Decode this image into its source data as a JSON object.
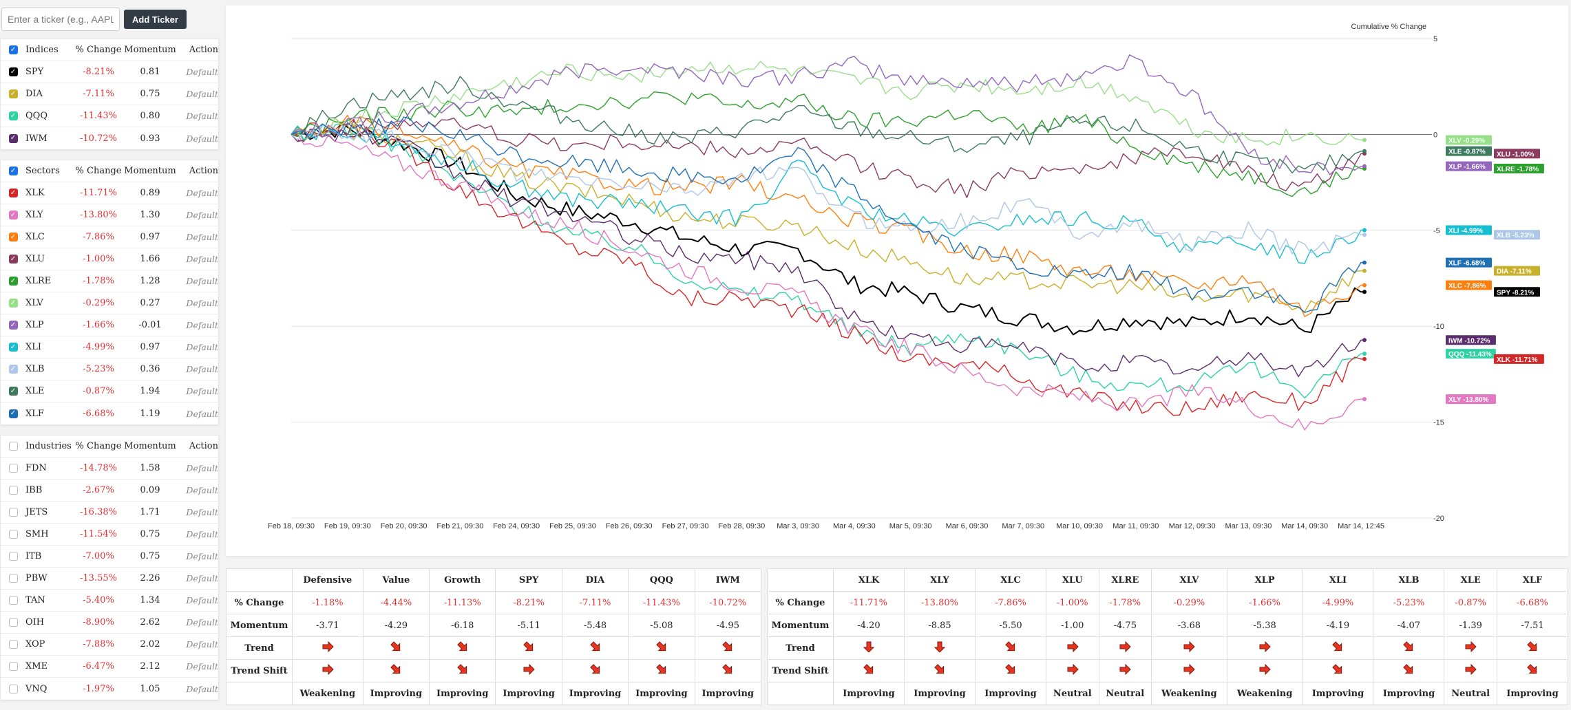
{
  "add_ticker": {
    "placeholder": "Enter a ticker (e.g., AAPL)",
    "button_label": "Add Ticker"
  },
  "headers": {
    "pct": "% Change",
    "momentum": "Momentum",
    "action": "Action"
  },
  "groups": [
    {
      "name": "Indices",
      "checked": true,
      "rows": [
        {
          "ticker": "SPY",
          "pct": "-8.21%",
          "momentum": "0.81",
          "action": "Default",
          "color": "#000000",
          "checked": true
        },
        {
          "ticker": "DIA",
          "pct": "-7.11%",
          "momentum": "0.75",
          "action": "Default",
          "color": "#c9b02a",
          "checked": true
        },
        {
          "ticker": "QQQ",
          "pct": "-11.43%",
          "momentum": "0.80",
          "action": "Default",
          "color": "#2ed3a3",
          "checked": true
        },
        {
          "ticker": "IWM",
          "pct": "-10.72%",
          "momentum": "0.93",
          "action": "Default",
          "color": "#5c2d6e",
          "checked": true
        }
      ]
    },
    {
      "name": "Sectors",
      "checked": true,
      "rows": [
        {
          "ticker": "XLK",
          "pct": "-11.71%",
          "momentum": "0.89",
          "action": "Default",
          "color": "#d62728",
          "checked": true
        },
        {
          "ticker": "XLY",
          "pct": "-13.80%",
          "momentum": "1.30",
          "action": "Default",
          "color": "#e377c2",
          "checked": true
        },
        {
          "ticker": "XLC",
          "pct": "-7.86%",
          "momentum": "0.97",
          "action": "Default",
          "color": "#ff7f0e",
          "checked": true
        },
        {
          "ticker": "XLU",
          "pct": "-1.00%",
          "momentum": "1.66",
          "action": "Default",
          "color": "#8c3b5e",
          "checked": true
        },
        {
          "ticker": "XLRE",
          "pct": "-1.78%",
          "momentum": "1.28",
          "action": "Default",
          "color": "#2ca02c",
          "checked": true
        },
        {
          "ticker": "XLV",
          "pct": "-0.29%",
          "momentum": "0.27",
          "action": "Default",
          "color": "#98df8a",
          "checked": true
        },
        {
          "ticker": "XLP",
          "pct": "-1.66%",
          "momentum": "-0.01",
          "action": "Default",
          "color": "#9467bd",
          "checked": true
        },
        {
          "ticker": "XLI",
          "pct": "-4.99%",
          "momentum": "0.97",
          "action": "Default",
          "color": "#17becf",
          "checked": true
        },
        {
          "ticker": "XLB",
          "pct": "-5.23%",
          "momentum": "0.36",
          "action": "Default",
          "color": "#aec7e8",
          "checked": true
        },
        {
          "ticker": "XLE",
          "pct": "-0.87%",
          "momentum": "1.94",
          "action": "Default",
          "color": "#3d7a5e",
          "checked": true
        },
        {
          "ticker": "XLF",
          "pct": "-6.68%",
          "momentum": "1.19",
          "action": "Default",
          "color": "#1f6fb4",
          "checked": true
        }
      ]
    },
    {
      "name": "Industries",
      "checked": false,
      "rows": [
        {
          "ticker": "FDN",
          "pct": "-14.78%",
          "momentum": "1.58",
          "action": "Default",
          "color": "",
          "checked": false
        },
        {
          "ticker": "IBB",
          "pct": "-2.67%",
          "momentum": "0.09",
          "action": "Default",
          "color": "",
          "checked": false
        },
        {
          "ticker": "JETS",
          "pct": "-16.38%",
          "momentum": "1.71",
          "action": "Default",
          "color": "",
          "checked": false
        },
        {
          "ticker": "SMH",
          "pct": "-11.54%",
          "momentum": "0.75",
          "action": "Default",
          "color": "",
          "checked": false
        },
        {
          "ticker": "ITB",
          "pct": "-7.00%",
          "momentum": "0.75",
          "action": "Default",
          "color": "",
          "checked": false
        },
        {
          "ticker": "PBW",
          "pct": "-13.55%",
          "momentum": "2.26",
          "action": "Default",
          "color": "",
          "checked": false
        },
        {
          "ticker": "TAN",
          "pct": "-5.40%",
          "momentum": "1.34",
          "action": "Default",
          "color": "",
          "checked": false
        },
        {
          "ticker": "OIH",
          "pct": "-8.90%",
          "momentum": "2.62",
          "action": "Default",
          "color": "",
          "checked": false
        },
        {
          "ticker": "XOP",
          "pct": "-7.88%",
          "momentum": "2.02",
          "action": "Default",
          "color": "",
          "checked": false
        },
        {
          "ticker": "XME",
          "pct": "-6.47%",
          "momentum": "2.12",
          "action": "Default",
          "color": "",
          "checked": false
        },
        {
          "ticker": "VNQ",
          "pct": "-1.97%",
          "momentum": "1.05",
          "action": "Default",
          "color": "",
          "checked": false
        }
      ]
    }
  ],
  "chart_data": {
    "type": "line",
    "ylabel": "Cumulative % Change",
    "ylim": [
      -20,
      5
    ],
    "yticks": [
      "5",
      "0",
      "-5",
      "-10",
      "-15",
      "-20"
    ],
    "x_labels": [
      "Feb 18, 09:30",
      "Feb 19, 09:30",
      "Feb 20, 09:30",
      "Feb 21, 09:30",
      "Feb 24, 09:30",
      "Feb 25, 09:30",
      "Feb 26, 09:30",
      "Feb 27, 09:30",
      "Feb 28, 09:30",
      "Mar 3, 09:30",
      "Mar 4, 09:30",
      "Mar 5, 09:30",
      "Mar 6, 09:30",
      "Mar 7, 09:30",
      "Mar 10, 09:30",
      "Mar 11, 09:30",
      "Mar 12, 09:30",
      "Mar 13, 09:30",
      "Mar 14, 09:30",
      "Mar 14, 12:45"
    ],
    "grid": true,
    "legend": "end-of-line labels",
    "series": [
      {
        "name": "SPY",
        "label": "SPY -8.21%",
        "color": "#000000",
        "values": [
          0,
          0.3,
          -0.5,
          -1.6,
          -3.2,
          -4.0,
          -4.5,
          -5.4,
          -6.0,
          -6.0,
          -7.8,
          -8.3,
          -9.1,
          -9.6,
          -10.1,
          -9.6,
          -9.9,
          -9.3,
          -10.2,
          -8.21
        ]
      },
      {
        "name": "DIA",
        "label": "DIA -7.11%",
        "color": "#c9b02a",
        "values": [
          0,
          0.2,
          -0.3,
          -1.2,
          -2.3,
          -2.9,
          -3.4,
          -4.3,
          -4.6,
          -4.7,
          -5.9,
          -6.6,
          -7.6,
          -7.6,
          -7.8,
          -7.9,
          -8.6,
          -8.3,
          -9.0,
          -7.11
        ]
      },
      {
        "name": "QQQ",
        "label": "QQQ -11.43%",
        "color": "#2ed3a3",
        "values": [
          0,
          0.4,
          -0.7,
          -2.4,
          -3.8,
          -5.2,
          -5.8,
          -7.4,
          -8.3,
          -8.5,
          -10.3,
          -11.1,
          -10.4,
          -11.3,
          -12.6,
          -13.1,
          -13.0,
          -12.2,
          -13.3,
          -11.43
        ]
      },
      {
        "name": "IWM",
        "label": "IWM -10.72%",
        "color": "#5c2d6e",
        "values": [
          0,
          0.1,
          -0.6,
          -2.2,
          -3.5,
          -4.2,
          -5.3,
          -6.3,
          -6.5,
          -7.0,
          -9.6,
          -10.6,
          -11.0,
          -11.1,
          -12.1,
          -11.8,
          -12.4,
          -11.5,
          -12.4,
          -10.72
        ]
      },
      {
        "name": "XLK",
        "label": "XLK -11.71%",
        "color": "#d62728",
        "values": [
          0,
          0.5,
          -0.8,
          -2.8,
          -4.4,
          -5.9,
          -6.5,
          -8.6,
          -8.5,
          -9.2,
          -10.4,
          -11.7,
          -11.9,
          -12.7,
          -13.6,
          -14.2,
          -14.3,
          -13.5,
          -14.0,
          -11.71
        ]
      },
      {
        "name": "XLY",
        "label": "XLY -13.80%",
        "color": "#e377c2",
        "values": [
          0,
          -0.6,
          -1.6,
          -2.6,
          -4.0,
          -4.8,
          -5.9,
          -7.0,
          -7.9,
          -8.4,
          -10.2,
          -11.2,
          -12.4,
          -13.3,
          -13.7,
          -14.2,
          -13.4,
          -14.1,
          -15.3,
          -13.8
        ]
      },
      {
        "name": "XLC",
        "label": "XLC -7.86%",
        "color": "#ff7f0e",
        "values": [
          0,
          0.6,
          0.1,
          -0.8,
          -1.8,
          -2.2,
          -2.6,
          -2.8,
          -2.5,
          -3.5,
          -4.5,
          -5.1,
          -6.1,
          -6.3,
          -7.1,
          -7.3,
          -7.9,
          -7.4,
          -9.2,
          -7.86
        ]
      },
      {
        "name": "XLU",
        "label": "XLU -1.00%",
        "color": "#8c3b5e",
        "values": [
          0,
          0.3,
          0.7,
          0.5,
          -0.2,
          -0.6,
          -0.4,
          -0.7,
          -0.9,
          -0.5,
          -1.6,
          -2.3,
          -2.9,
          -1.9,
          -1.7,
          -1.3,
          -0.8,
          -2.0,
          -2.9,
          -1.0
        ]
      },
      {
        "name": "XLRE",
        "label": "XLRE -1.78%",
        "color": "#2ca02c",
        "values": [
          0,
          0.8,
          1.1,
          1.4,
          1.1,
          1.6,
          1.8,
          2.0,
          1.4,
          1.8,
          0.7,
          0.7,
          1.2,
          0.2,
          0.8,
          -0.6,
          -1.6,
          -2.1,
          -3.0,
          -1.78
        ]
      },
      {
        "name": "XLV",
        "label": "XLV -0.29%",
        "color": "#98df8a",
        "values": [
          0,
          0.7,
          1.3,
          2.0,
          2.7,
          3.3,
          3.1,
          3.4,
          3.5,
          3.2,
          2.7,
          2.2,
          2.6,
          2.3,
          2.7,
          2.0,
          0.3,
          -0.3,
          -0.1,
          -0.29
        ]
      },
      {
        "name": "XLP",
        "label": "XLP -1.66%",
        "color": "#9467bd",
        "values": [
          0,
          0.5,
          1.0,
          1.6,
          2.4,
          3.3,
          3.6,
          3.3,
          2.9,
          3.0,
          3.7,
          2.8,
          2.8,
          2.6,
          3.1,
          3.9,
          2.0,
          -0.9,
          -1.8,
          -1.66
        ]
      },
      {
        "name": "XLI",
        "label": "XLI -4.99%",
        "color": "#17becf",
        "values": [
          0,
          0.2,
          -0.4,
          -1.5,
          -2.7,
          -3.4,
          -3.6,
          -4.1,
          -4.4,
          -1.6,
          -3.8,
          -4.6,
          -5.1,
          -4.4,
          -4.4,
          -4.7,
          -6.0,
          -5.6,
          -6.4,
          -4.99
        ]
      },
      {
        "name": "XLB",
        "label": "XLB -5.23%",
        "color": "#aec7e8",
        "values": [
          0,
          0.1,
          -0.3,
          -1.1,
          -2.0,
          -2.4,
          -2.6,
          -2.9,
          -2.2,
          -2.0,
          -4.4,
          -4.8,
          -4.5,
          -3.5,
          -5.1,
          -4.7,
          -5.7,
          -5.0,
          -6.1,
          -5.23
        ]
      },
      {
        "name": "XLE",
        "label": "XLE -0.87%",
        "color": "#3d7a5e",
        "values": [
          0,
          1.6,
          2.1,
          2.6,
          1.6,
          0.8,
          0.1,
          -0.3,
          0.3,
          1.2,
          0.3,
          -0.2,
          -0.7,
          -0.2,
          0.6,
          0.4,
          -0.8,
          -1.4,
          -2.0,
          -0.87
        ]
      },
      {
        "name": "XLF",
        "label": "XLF -6.68%",
        "color": "#1f6fb4",
        "values": [
          0,
          0.4,
          0.5,
          -0.1,
          -1.1,
          -1.5,
          -1.8,
          -2.2,
          -2.3,
          -1.0,
          -3.0,
          -4.8,
          -6.1,
          -6.9,
          -7.5,
          -7.2,
          -8.4,
          -8.1,
          -9.3,
          -6.68
        ]
      }
    ]
  },
  "summary_left": {
    "columns": [
      "",
      "Defensive",
      "Value",
      "Growth",
      "SPY",
      "DIA",
      "QQQ",
      "IWM"
    ],
    "rows": [
      {
        "label": "% Change",
        "kind": "pct",
        "cells": [
          "-1.18%",
          "-4.44%",
          "-11.13%",
          "-8.21%",
          "-7.11%",
          "-11.43%",
          "-10.72%"
        ]
      },
      {
        "label": "Momentum",
        "kind": "num",
        "cells": [
          "-3.71",
          "-4.29",
          "-6.18",
          "-5.11",
          "-5.48",
          "-5.08",
          "-4.95"
        ]
      },
      {
        "label": "Trend",
        "kind": "arrow",
        "cells": [
          "right",
          "down-right",
          "down-right",
          "down-right",
          "down-right",
          "down-right",
          "down-right"
        ]
      },
      {
        "label": "Trend Shift",
        "kind": "arrow",
        "cells": [
          "right",
          "down-right",
          "down-right",
          "right",
          "down-right",
          "down-right",
          "down-right"
        ]
      },
      {
        "label": "",
        "kind": "status",
        "cells": [
          "Weakening",
          "Improving",
          "Improving",
          "Improving",
          "Improving",
          "Improving",
          "Improving"
        ]
      }
    ]
  },
  "summary_right": {
    "columns": [
      "",
      "XLK",
      "XLY",
      "XLC",
      "XLU",
      "XLRE",
      "XLV",
      "XLP",
      "XLI",
      "XLB",
      "XLE",
      "XLF"
    ],
    "rows": [
      {
        "label": "% Change",
        "kind": "pct",
        "cells": [
          "-11.71%",
          "-13.80%",
          "-7.86%",
          "-1.00%",
          "-1.78%",
          "-0.29%",
          "-1.66%",
          "-4.99%",
          "-5.23%",
          "-0.87%",
          "-6.68%"
        ]
      },
      {
        "label": "Momentum",
        "kind": "num",
        "cells": [
          "-4.20",
          "-8.85",
          "-5.50",
          "-1.00",
          "-4.75",
          "-3.68",
          "-5.38",
          "-4.19",
          "-4.07",
          "-1.39",
          "-7.51"
        ]
      },
      {
        "label": "Trend",
        "kind": "arrow",
        "cells": [
          "down",
          "down",
          "down-right",
          "right",
          "right",
          "right",
          "right",
          "down-right",
          "down-right",
          "right",
          "down-right"
        ]
      },
      {
        "label": "Trend Shift",
        "kind": "arrow",
        "cells": [
          "down-right",
          "down-right",
          "down-right",
          "right",
          "right",
          "right",
          "right",
          "down-right",
          "down-right",
          "right",
          "down-right"
        ]
      },
      {
        "label": "",
        "kind": "status",
        "cells": [
          "Improving",
          "Improving",
          "Improving",
          "Neutral",
          "Neutral",
          "Weakening",
          "Weakening",
          "Improving",
          "Improving",
          "Neutral",
          "Improving"
        ]
      }
    ]
  },
  "colors": {
    "negative": "#e03030",
    "arrow_fill": "#e8331f",
    "arrow_stroke": "#7a1a10",
    "button_bg": "#333b44"
  },
  "icons": {
    "checkbox": "checkbox-icon",
    "trend_arrow": "trend-arrow-icon"
  }
}
